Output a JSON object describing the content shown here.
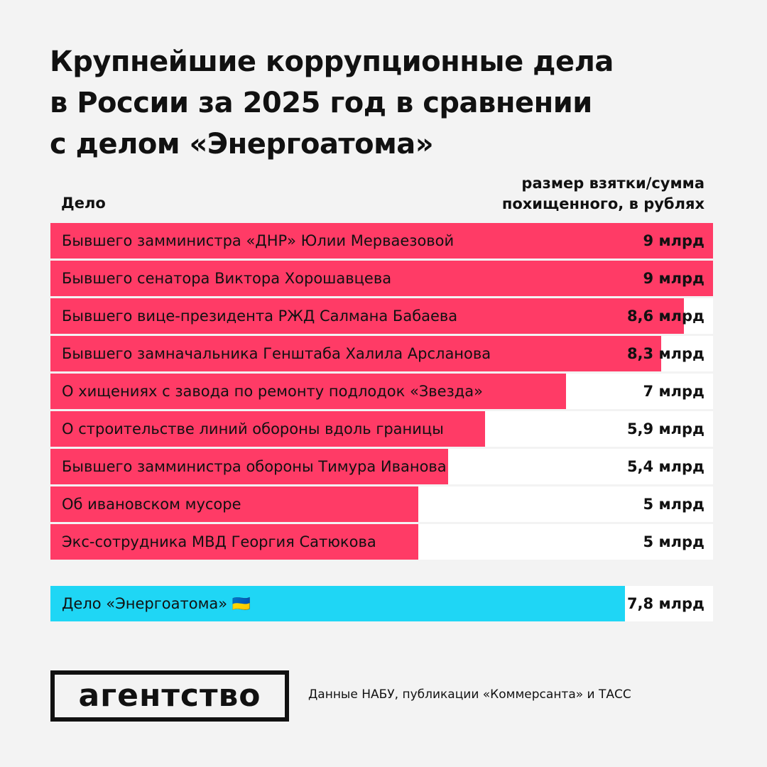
{
  "chart_data": {
    "type": "bar",
    "title": "Крупнейшие коррупционные дела\nв России за 2025 год в сравнении\nс делом «Энергоатома»",
    "category_header": "Дело",
    "value_header": [
      "размер взятки/сумма",
      "похищенного, в рублях"
    ],
    "categories": [
      "Бывшего замминистра «ДНР» Юлии Мерваезовой",
      "Бывшего сенатора Виктора Хорошавцева",
      "Бывшего вице-президента РЖД Салмана Бабаева",
      "Бывшего замначальника Генштаба Халила Арсланова",
      "О хищениях с завода по ремонту подлодок «Звезда»",
      "О строительстве линий обороны вдоль границы",
      "Бывшего замминистра обороны Тимура Иванова",
      "Об ивановском мусоре",
      "Экс-сотрудника МВД Георгия Сатюкова"
    ],
    "values": [
      9,
      9,
      8.6,
      8.3,
      7,
      5.9,
      5.4,
      5,
      5
    ],
    "value_labels": [
      "9 млрд",
      "9 млрд",
      "8,6 млрд",
      "8,3 млрд",
      "7 млрд",
      "5,9 млрд",
      "5,4 млрд",
      "5 млрд",
      "5 млрд"
    ],
    "color": "#ff3b66",
    "highlight": {
      "category": "Дело «Энергоатома» 🇺🇦",
      "value": 7.8,
      "value_label": "7,8 млрд",
      "color": "#1fd6f5"
    }
  },
  "footer": {
    "logo": "агентство",
    "source": "Данные НАБУ, публикации «Коммерсанта» и ТАСС"
  }
}
